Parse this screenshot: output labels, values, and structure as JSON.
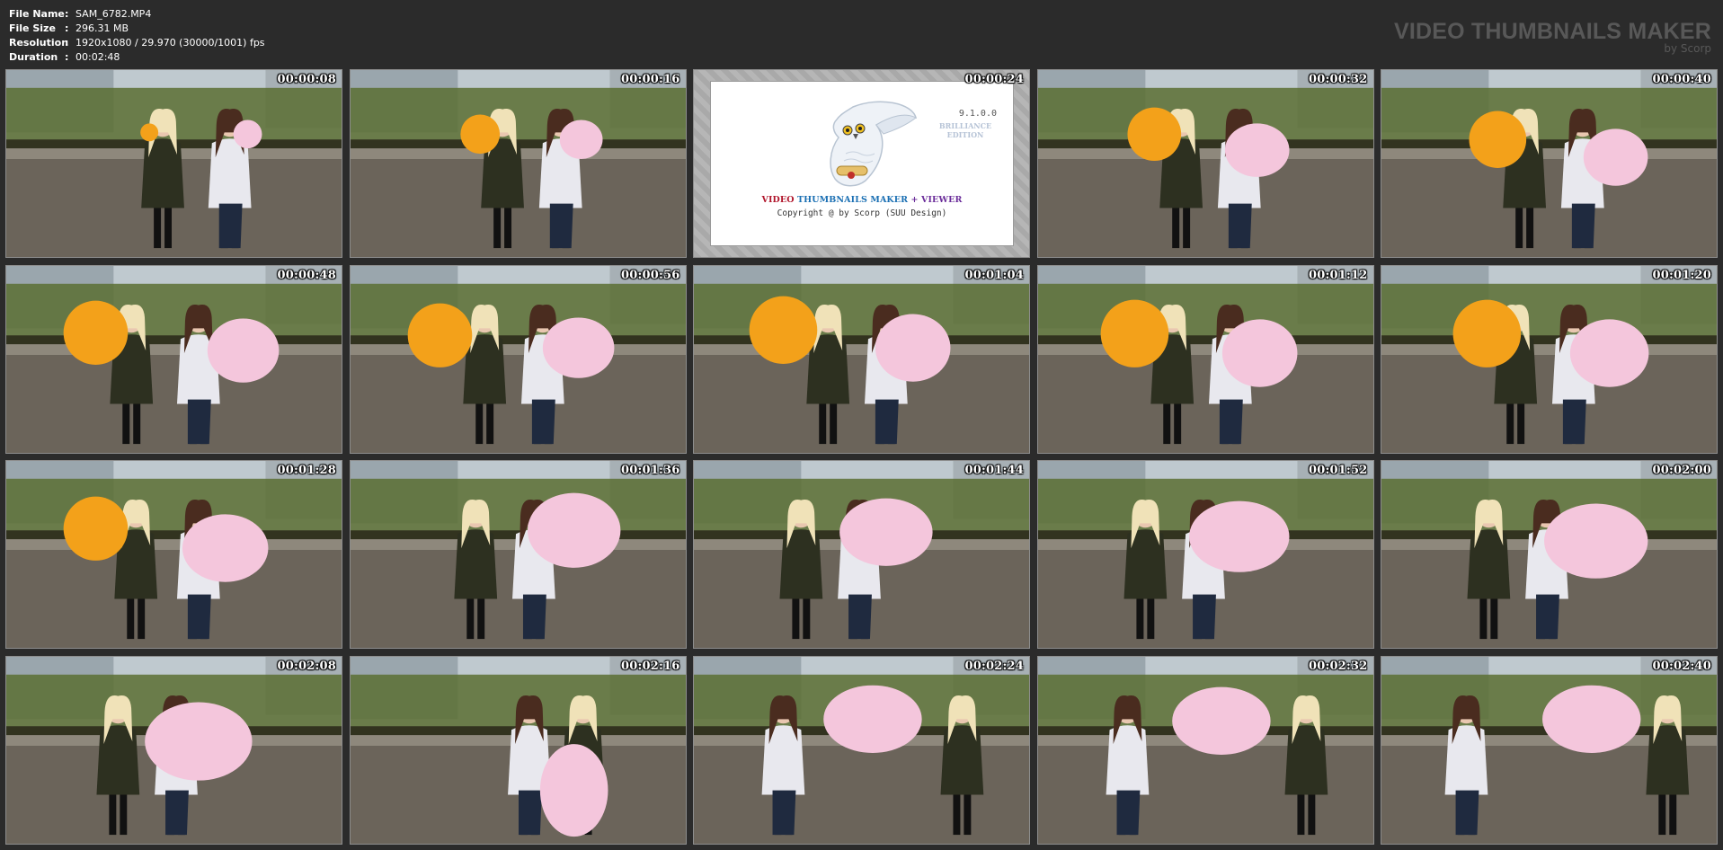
{
  "header": {
    "file_name_label": "File Name",
    "file_name": "SAM_6782.MP4",
    "file_size_label": "File Size",
    "file_size": "296.31 MB",
    "resolution_label": "Resolution",
    "resolution": "1920x1080 / 29.970 (30000/1001) fps",
    "duration_label": "Duration",
    "duration": "00:02:48",
    "separator": ":"
  },
  "brand": {
    "title": "VIDEO THUMBNAILS MAKER",
    "subtitle": "by Scorp"
  },
  "splash": {
    "version": "9.1.0.0",
    "edition": "BRILLIANCE EDITION",
    "product_part1": "VIDEO ",
    "product_part2": "THUMBNAILS MAKER",
    "product_part3": " + ",
    "product_part4": "VIEWER",
    "copyright": "Copyright @ by Scorp (SUU Design)"
  },
  "thumbnails": [
    {
      "time": "00:00:08"
    },
    {
      "time": "00:00:16"
    },
    {
      "time": "00:00:24"
    },
    {
      "time": "00:00:32"
    },
    {
      "time": "00:00:40"
    },
    {
      "time": "00:00:48"
    },
    {
      "time": "00:00:56"
    },
    {
      "time": "00:01:04"
    },
    {
      "time": "00:01:12"
    },
    {
      "time": "00:01:20"
    },
    {
      "time": "00:01:28"
    },
    {
      "time": "00:01:36"
    },
    {
      "time": "00:01:44"
    },
    {
      "time": "00:01:52"
    },
    {
      "time": "00:02:00"
    },
    {
      "time": "00:02:08"
    },
    {
      "time": "00:02:16"
    },
    {
      "time": "00:02:24"
    },
    {
      "time": "00:02:32"
    },
    {
      "time": "00:02:40"
    }
  ],
  "colors": {
    "background": "#2b2b2b",
    "orange_balloon": "#f3a11a",
    "pink_balloon": "#f4c6dc",
    "rooftop": "#6b645a",
    "trees": "#5b6e33",
    "sky": "#bfc9cf"
  }
}
